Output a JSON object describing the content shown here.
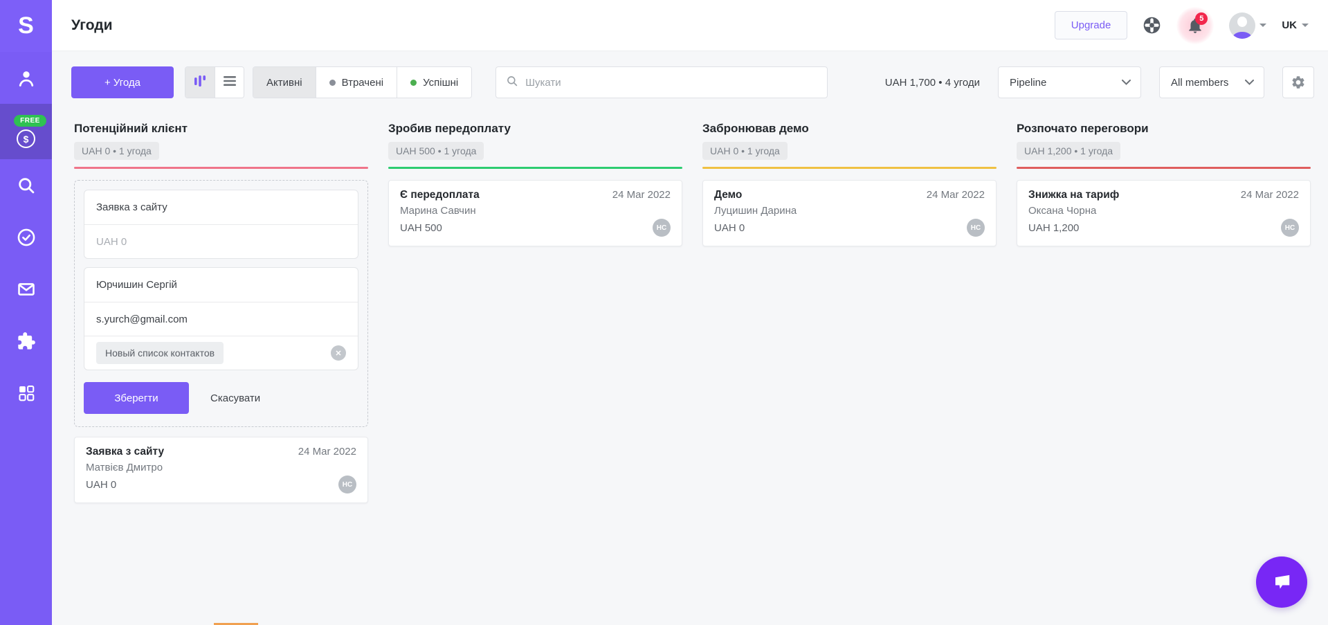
{
  "app": {
    "logo_letter": "S"
  },
  "topbar": {
    "title": "Угоди",
    "upgrade_label": "Upgrade",
    "notification_count": "5",
    "language": "UK"
  },
  "sidebar": {
    "free_badge": "FREE"
  },
  "toolbar": {
    "add_deal_label": "+ Угода",
    "tabs": [
      {
        "label": "Активні",
        "active": true,
        "dot": null
      },
      {
        "label": "Втрачені",
        "active": false,
        "dot": "#8a8f98"
      },
      {
        "label": "Успішні",
        "active": false,
        "dot": "#4caf50"
      }
    ],
    "search_placeholder": "Шукати",
    "total_summary": "UAH 1,700 • 4 угоди",
    "pipeline_value": "Pipeline",
    "members_value": "All members"
  },
  "form": {
    "deal_name_value": "Заявка з сайту",
    "amount_placeholder": "UAH 0",
    "contact_name_value": "Юрчишин Сергій",
    "email_value": "s.yurch@gmail.com",
    "contact_list_chip": "Новый список контактов",
    "save_label": "Зберегти",
    "cancel_label": "Скасувати"
  },
  "board": {
    "columns": [
      {
        "title": "Потенційний клієнт",
        "summary": "UAH 0 • 1 угода",
        "accent": "#ef758a",
        "has_form": true,
        "cards": [
          {
            "title": "Заявка з сайту",
            "date": "24 Mar 2022",
            "contact": "Матвієв Дмитро",
            "amount": "UAH 0",
            "owner_initials": "НС"
          }
        ]
      },
      {
        "title": "Зробив передоплату",
        "summary": "UAH 500 • 1 угода",
        "accent": "#2ecc71",
        "has_form": false,
        "cards": [
          {
            "title": "Є передоплата",
            "date": "24 Mar 2022",
            "contact": "Марина Савчин",
            "amount": "UAH 500",
            "owner_initials": "НС"
          }
        ]
      },
      {
        "title": "Забронював демо",
        "summary": "UAH 0 • 1 угода",
        "accent": "#efc143",
        "has_form": false,
        "cards": [
          {
            "title": "Демо",
            "date": "24 Mar 2022",
            "contact": "Луцишин Дарина",
            "amount": "UAH 0",
            "owner_initials": "НС"
          }
        ]
      },
      {
        "title": "Розпочато переговори",
        "summary": "UAH 1,200 • 1 угода",
        "accent": "#df5e5e",
        "has_form": false,
        "cards": [
          {
            "title": "Знижка на тариф",
            "date": "24 Mar 2022",
            "contact": "Оксана Чорна",
            "amount": "UAH 1,200",
            "owner_initials": "НС"
          }
        ]
      }
    ]
  }
}
